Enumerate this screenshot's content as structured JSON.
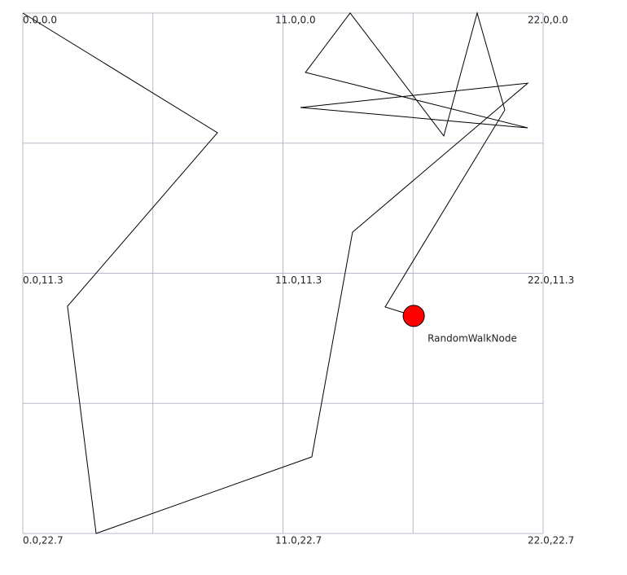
{
  "scene": {
    "xlim": [
      0,
      22
    ],
    "ylim": [
      0,
      22.7
    ],
    "xgrid": [
      0,
      5.5,
      11,
      16.5,
      22
    ],
    "ygrid": [
      0,
      5.675,
      11.35,
      17.025,
      22.7
    ],
    "grid_labels": [
      {
        "text": "0.0,0.0",
        "x": 0,
        "y": 0
      },
      {
        "text": "11.0,0.0",
        "x": 11,
        "y": 0
      },
      {
        "text": "22.0,0.0",
        "x": 22,
        "y": 0
      },
      {
        "text": "0.0,11.3",
        "x": 0,
        "y": 11.35
      },
      {
        "text": "11.0,11.3",
        "x": 11,
        "y": 11.35
      },
      {
        "text": "22.0,11.3",
        "x": 22,
        "y": 11.35
      },
      {
        "text": "0.0,22.7",
        "x": 0,
        "y": 22.7
      },
      {
        "text": "11.0,22.7",
        "x": 11,
        "y": 22.7
      },
      {
        "text": "22.0,22.7",
        "x": 22,
        "y": 22.7
      }
    ],
    "path": {
      "x": [
        0,
        8.23,
        1.89,
        3.1,
        12.22,
        13.94,
        21.35,
        11.74,
        21.35,
        11.95,
        13.84,
        17.8,
        19.21,
        20.38,
        15.32,
        16.53
      ],
      "y": [
        0,
        5.22,
        12.79,
        22.7,
        19.36,
        9.56,
        3.06,
        4.12,
        5.01,
        2.59,
        0,
        5.36,
        0,
        4.23,
        12.82,
        13.21
      ]
    },
    "node": {
      "name": "RandomWalkNode",
      "x": 16.53,
      "y": 13.21,
      "color": "#ff0000"
    }
  }
}
